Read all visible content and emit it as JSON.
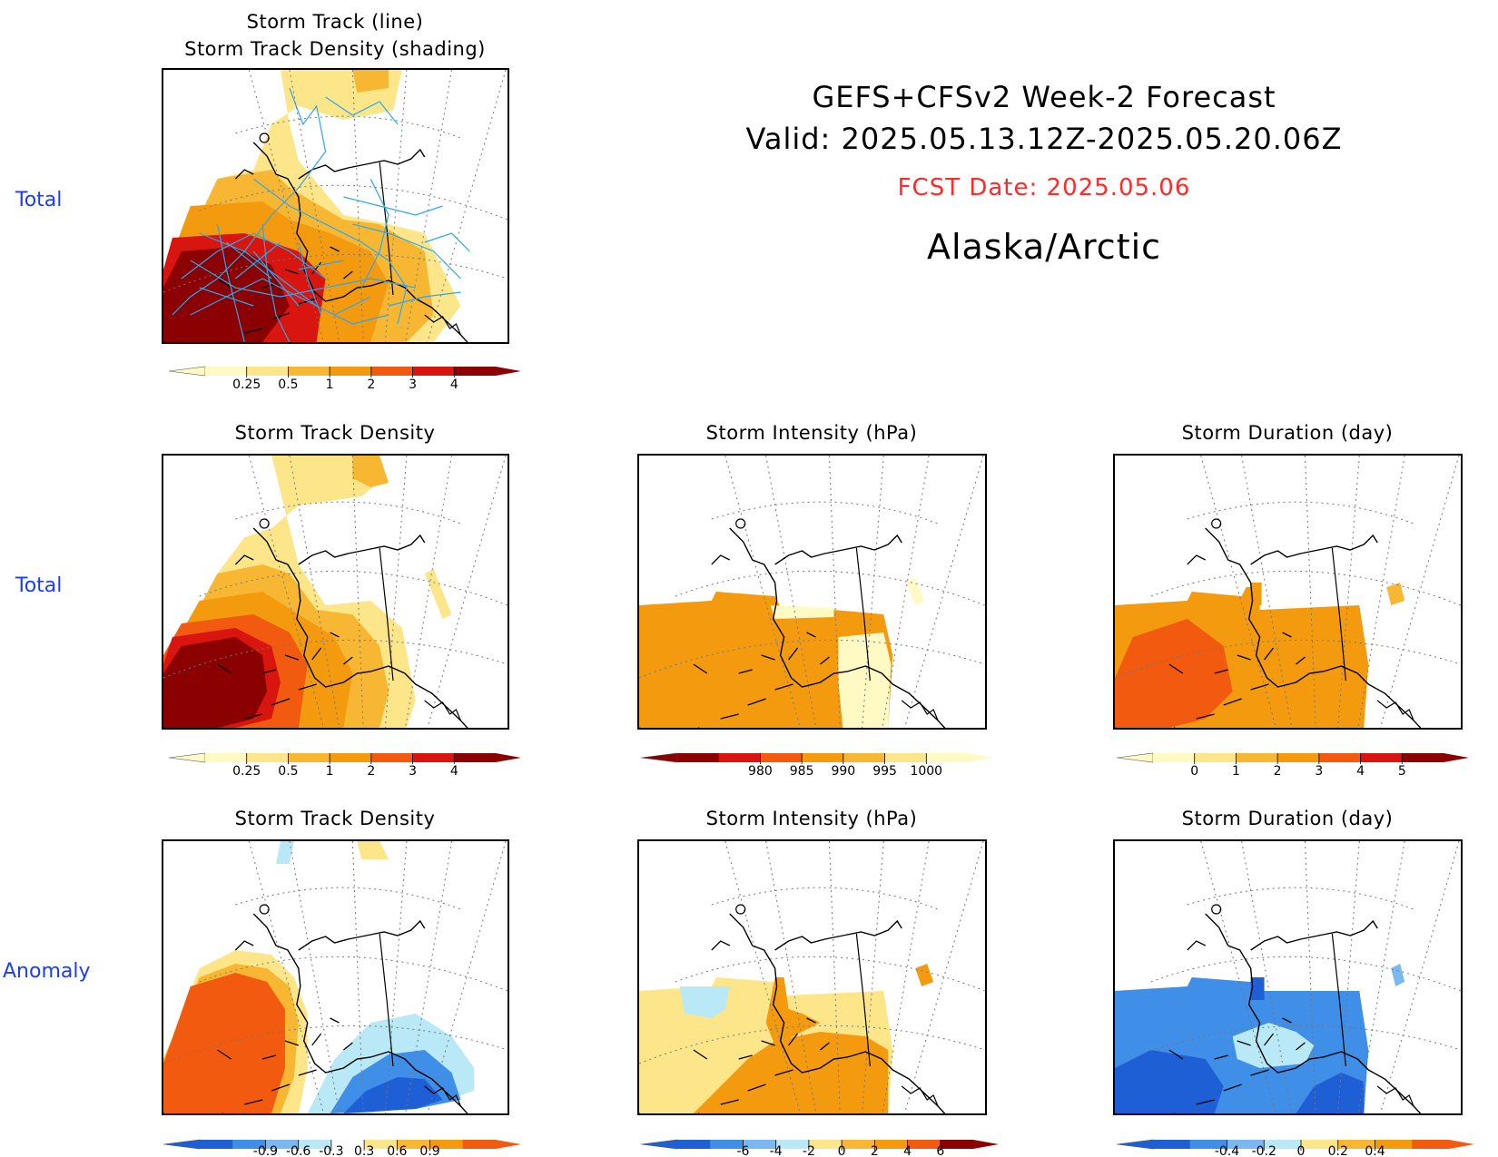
{
  "header": {
    "line1": "GEFS+CFSv2 Week-2 Forecast",
    "line2": "Valid: 2025.05.13.12Z-2025.05.20.06Z",
    "fcst": "FCST Date: 2025.05.06",
    "region": "Alaska/Arctic",
    "fcst_color": "#ff2a2a"
  },
  "row_labels": [
    "Total",
    "Total",
    "Anomaly"
  ],
  "panels": {
    "track": {
      "title1": "Storm Track (line)",
      "title2": "Storm Track Density (shading)"
    },
    "density_total": {
      "title": "Storm Track Density"
    },
    "intensity_total": {
      "title": "Storm Intensity (hPa)"
    },
    "duration_total": {
      "title": "Storm Duration (day)"
    },
    "density_anom": {
      "title": "Storm Track Density"
    },
    "intensity_anom": {
      "title": "Storm Intensity (hPa)"
    },
    "duration_anom": {
      "title": "Storm Duration (day)"
    }
  },
  "colorbars": {
    "density": {
      "ticks": [
        "0.25",
        "0.5",
        "1",
        "2",
        "3",
        "4"
      ],
      "colors": [
        "#fff9c4",
        "#fde58a",
        "#f7b733",
        "#f39a0e",
        "#f25a0f",
        "#d9150f",
        "#8b0000"
      ]
    },
    "intensity": {
      "ticks": [
        "980",
        "985",
        "990",
        "995",
        "1000"
      ],
      "colors": [
        "#8b0000",
        "#d9150f",
        "#f25a0f",
        "#f39a0e",
        "#f7b733",
        "#fde58a",
        "#fff9c4"
      ]
    },
    "duration": {
      "ticks": [
        "0",
        "1",
        "2",
        "3",
        "4",
        "5"
      ],
      "colors": [
        "#fff9c4",
        "#fde58a",
        "#f7b733",
        "#f39a0e",
        "#f25a0f",
        "#d9150f",
        "#8b0000"
      ]
    },
    "density_anom": {
      "ticks": [
        "-0.9",
        "-0.6",
        "-0.3",
        "0.3",
        "0.6",
        "0.9"
      ],
      "colors": [
        "#1f5fd6",
        "#3f8ee8",
        "#7ab8f2",
        "#b9e8f6",
        "#ffffff",
        "#fde58a",
        "#f7b733",
        "#f39a0e",
        "#f25a0f"
      ]
    },
    "intensity_anom": {
      "ticks": [
        "-6",
        "-4",
        "-2",
        "0",
        "2",
        "4",
        "6"
      ],
      "colors": [
        "#1f5fd6",
        "#3f8ee8",
        "#7ab8f2",
        "#b9e8f6",
        "#fde58a",
        "#f7b733",
        "#f39a0e",
        "#f25a0f",
        "#8b0000"
      ]
    },
    "duration_anom": {
      "ticks": [
        "-0.4",
        "-0.2",
        "0",
        "0.2",
        "0.4"
      ],
      "colors": [
        "#1f5fd6",
        "#3f8ee8",
        "#7ab8f2",
        "#b9e8f6",
        "#fde58a",
        "#f7b733",
        "#f39a0e",
        "#f25a0f"
      ]
    }
  }
}
